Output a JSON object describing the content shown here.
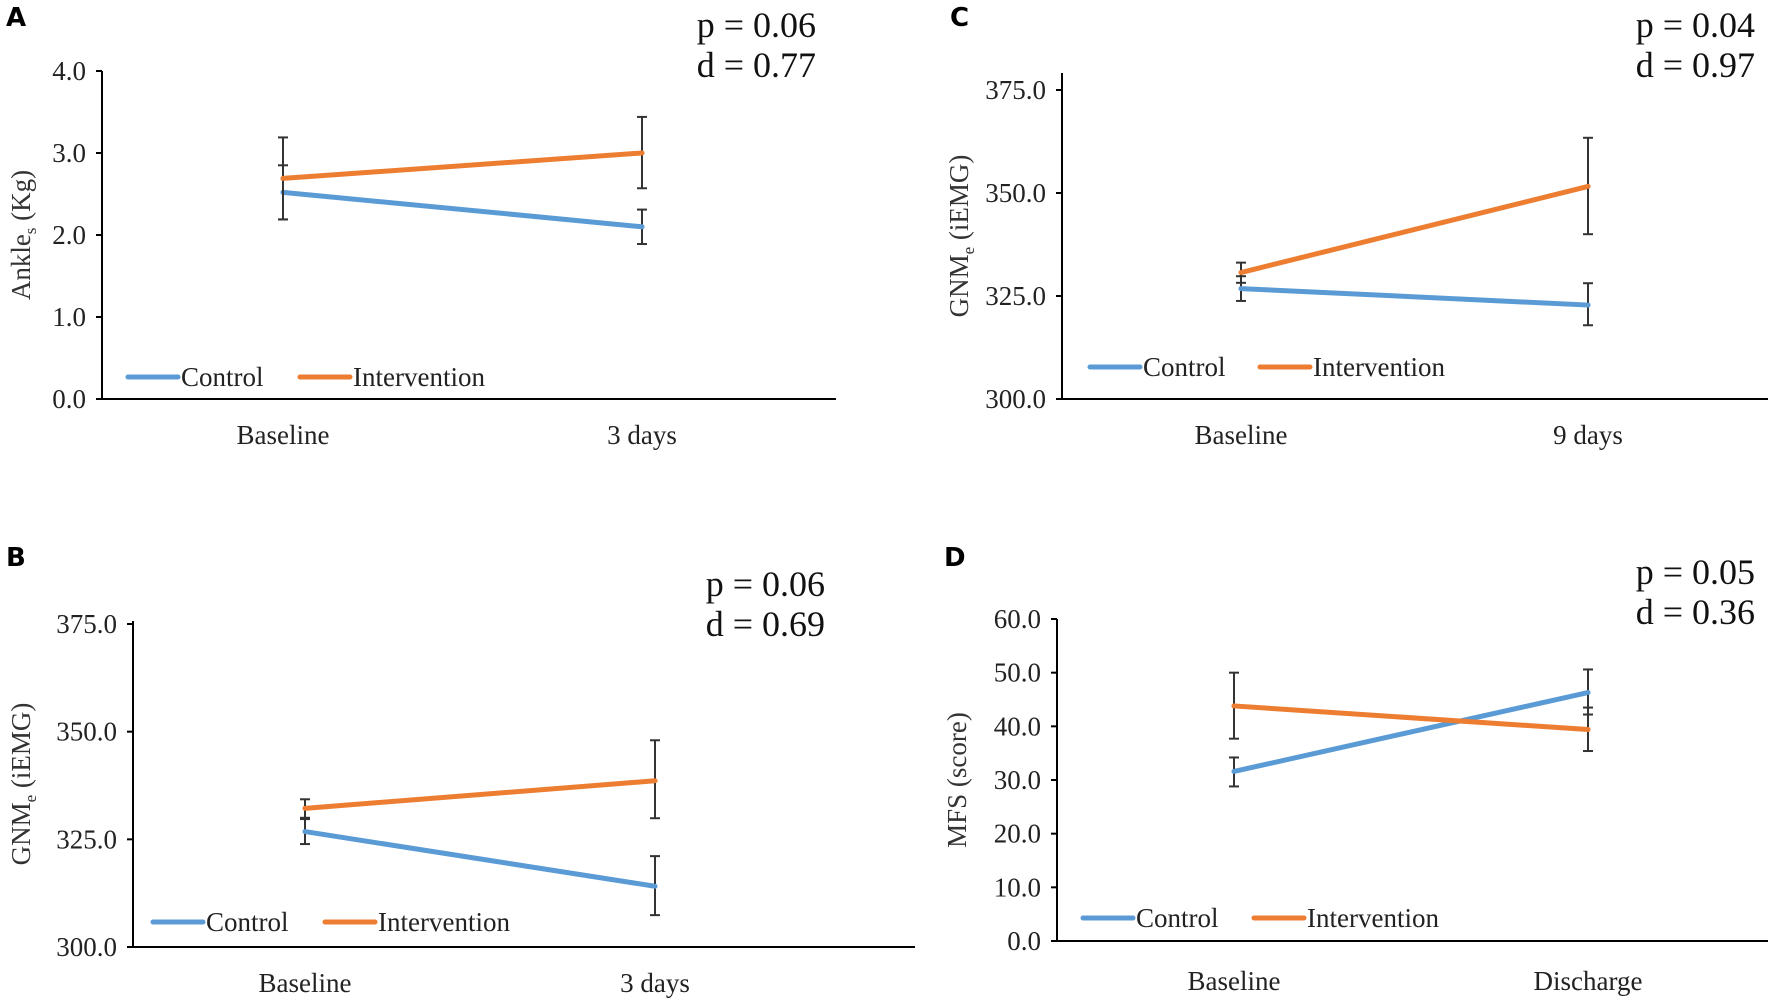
{
  "colors": {
    "control": "#5B9BD5",
    "intervention": "#ED7D31",
    "axis": "#000000",
    "error_bar": "#333333"
  },
  "chart_data": [
    {
      "panel": "A",
      "type": "line",
      "ylabel": {
        "base": "Ankle",
        "sub": "s",
        "unit": " (Kg)"
      },
      "categories": [
        "Baseline",
        "3 days"
      ],
      "ylim": [
        0,
        4
      ],
      "yticks": [
        "0.0",
        "1.0",
        "2.0",
        "3.0",
        "4.0"
      ],
      "legend": "bottom-left",
      "p": "p = 0.06",
      "d": "d = 0.77",
      "series": [
        {
          "name": "Control",
          "values": [
            2.52,
            2.1
          ],
          "error_low": [
            2.19,
            1.89
          ],
          "error_high": [
            2.85,
            2.31
          ]
        },
        {
          "name": "Intervention",
          "values": [
            2.69,
            3.0
          ],
          "error_low": [
            2.19,
            2.57
          ],
          "error_high": [
            3.19,
            3.44
          ]
        }
      ]
    },
    {
      "panel": "B",
      "type": "line",
      "ylabel": {
        "base": "GNM",
        "sub": "e",
        "unit": " (iEMG)"
      },
      "categories": [
        "Baseline",
        "3 days"
      ],
      "ylim": [
        300,
        375
      ],
      "yticks": [
        "300.0",
        "325.0",
        "350.0",
        "375.0"
      ],
      "legend": "bottom-left",
      "p": "p = 0.06",
      "d": "d = 0.69",
      "series": [
        {
          "name": "Control",
          "values": [
            326.8,
            314.1
          ],
          "error_low": [
            323.9,
            307.4
          ],
          "error_high": [
            329.7,
            321.1
          ]
        },
        {
          "name": "Intervention",
          "values": [
            332.2,
            338.6
          ],
          "error_low": [
            330.0,
            329.9
          ],
          "error_high": [
            334.3,
            348.0
          ]
        }
      ]
    },
    {
      "panel": "C",
      "type": "line",
      "ylabel": {
        "base": "GNM",
        "sub": "e",
        "unit": " (iEMG)"
      },
      "categories": [
        "Baseline",
        "9 days"
      ],
      "ylim": [
        300,
        375
      ],
      "yticks": [
        "300.0",
        "325.0",
        "350.0",
        "375.0"
      ],
      "legend": "bottom-left",
      "p": "p = 0.04",
      "d": "d = 0.97",
      "series": [
        {
          "name": "Control",
          "values": [
            326.8,
            322.8
          ],
          "error_low": [
            323.8,
            317.9
          ],
          "error_high": [
            329.8,
            328.1
          ]
        },
        {
          "name": "Intervention",
          "values": [
            330.7,
            351.6
          ],
          "error_low": [
            328.2,
            340.0
          ],
          "error_high": [
            333.1,
            363.4
          ]
        }
      ]
    },
    {
      "panel": "D",
      "type": "line",
      "ylabel": {
        "base": "MFS (score)",
        "sub": "",
        "unit": ""
      },
      "categories": [
        "Baseline",
        "Discharge"
      ],
      "ylim": [
        0,
        60
      ],
      "yticks": [
        "0.0",
        "10.0",
        "20.0",
        "30.0",
        "40.0",
        "50.0",
        "60.0"
      ],
      "legend": "bottom-left",
      "p": "p = 0.05",
      "d": "d = 0.36",
      "series": [
        {
          "name": "Control",
          "values": [
            31.6,
            46.3
          ],
          "error_low": [
            28.8,
            42.2
          ],
          "error_high": [
            34.2,
            50.6
          ]
        },
        {
          "name": "Intervention",
          "values": [
            43.8,
            39.4
          ],
          "error_low": [
            37.7,
            35.4
          ],
          "error_high": [
            50.0,
            43.5
          ]
        }
      ]
    }
  ]
}
